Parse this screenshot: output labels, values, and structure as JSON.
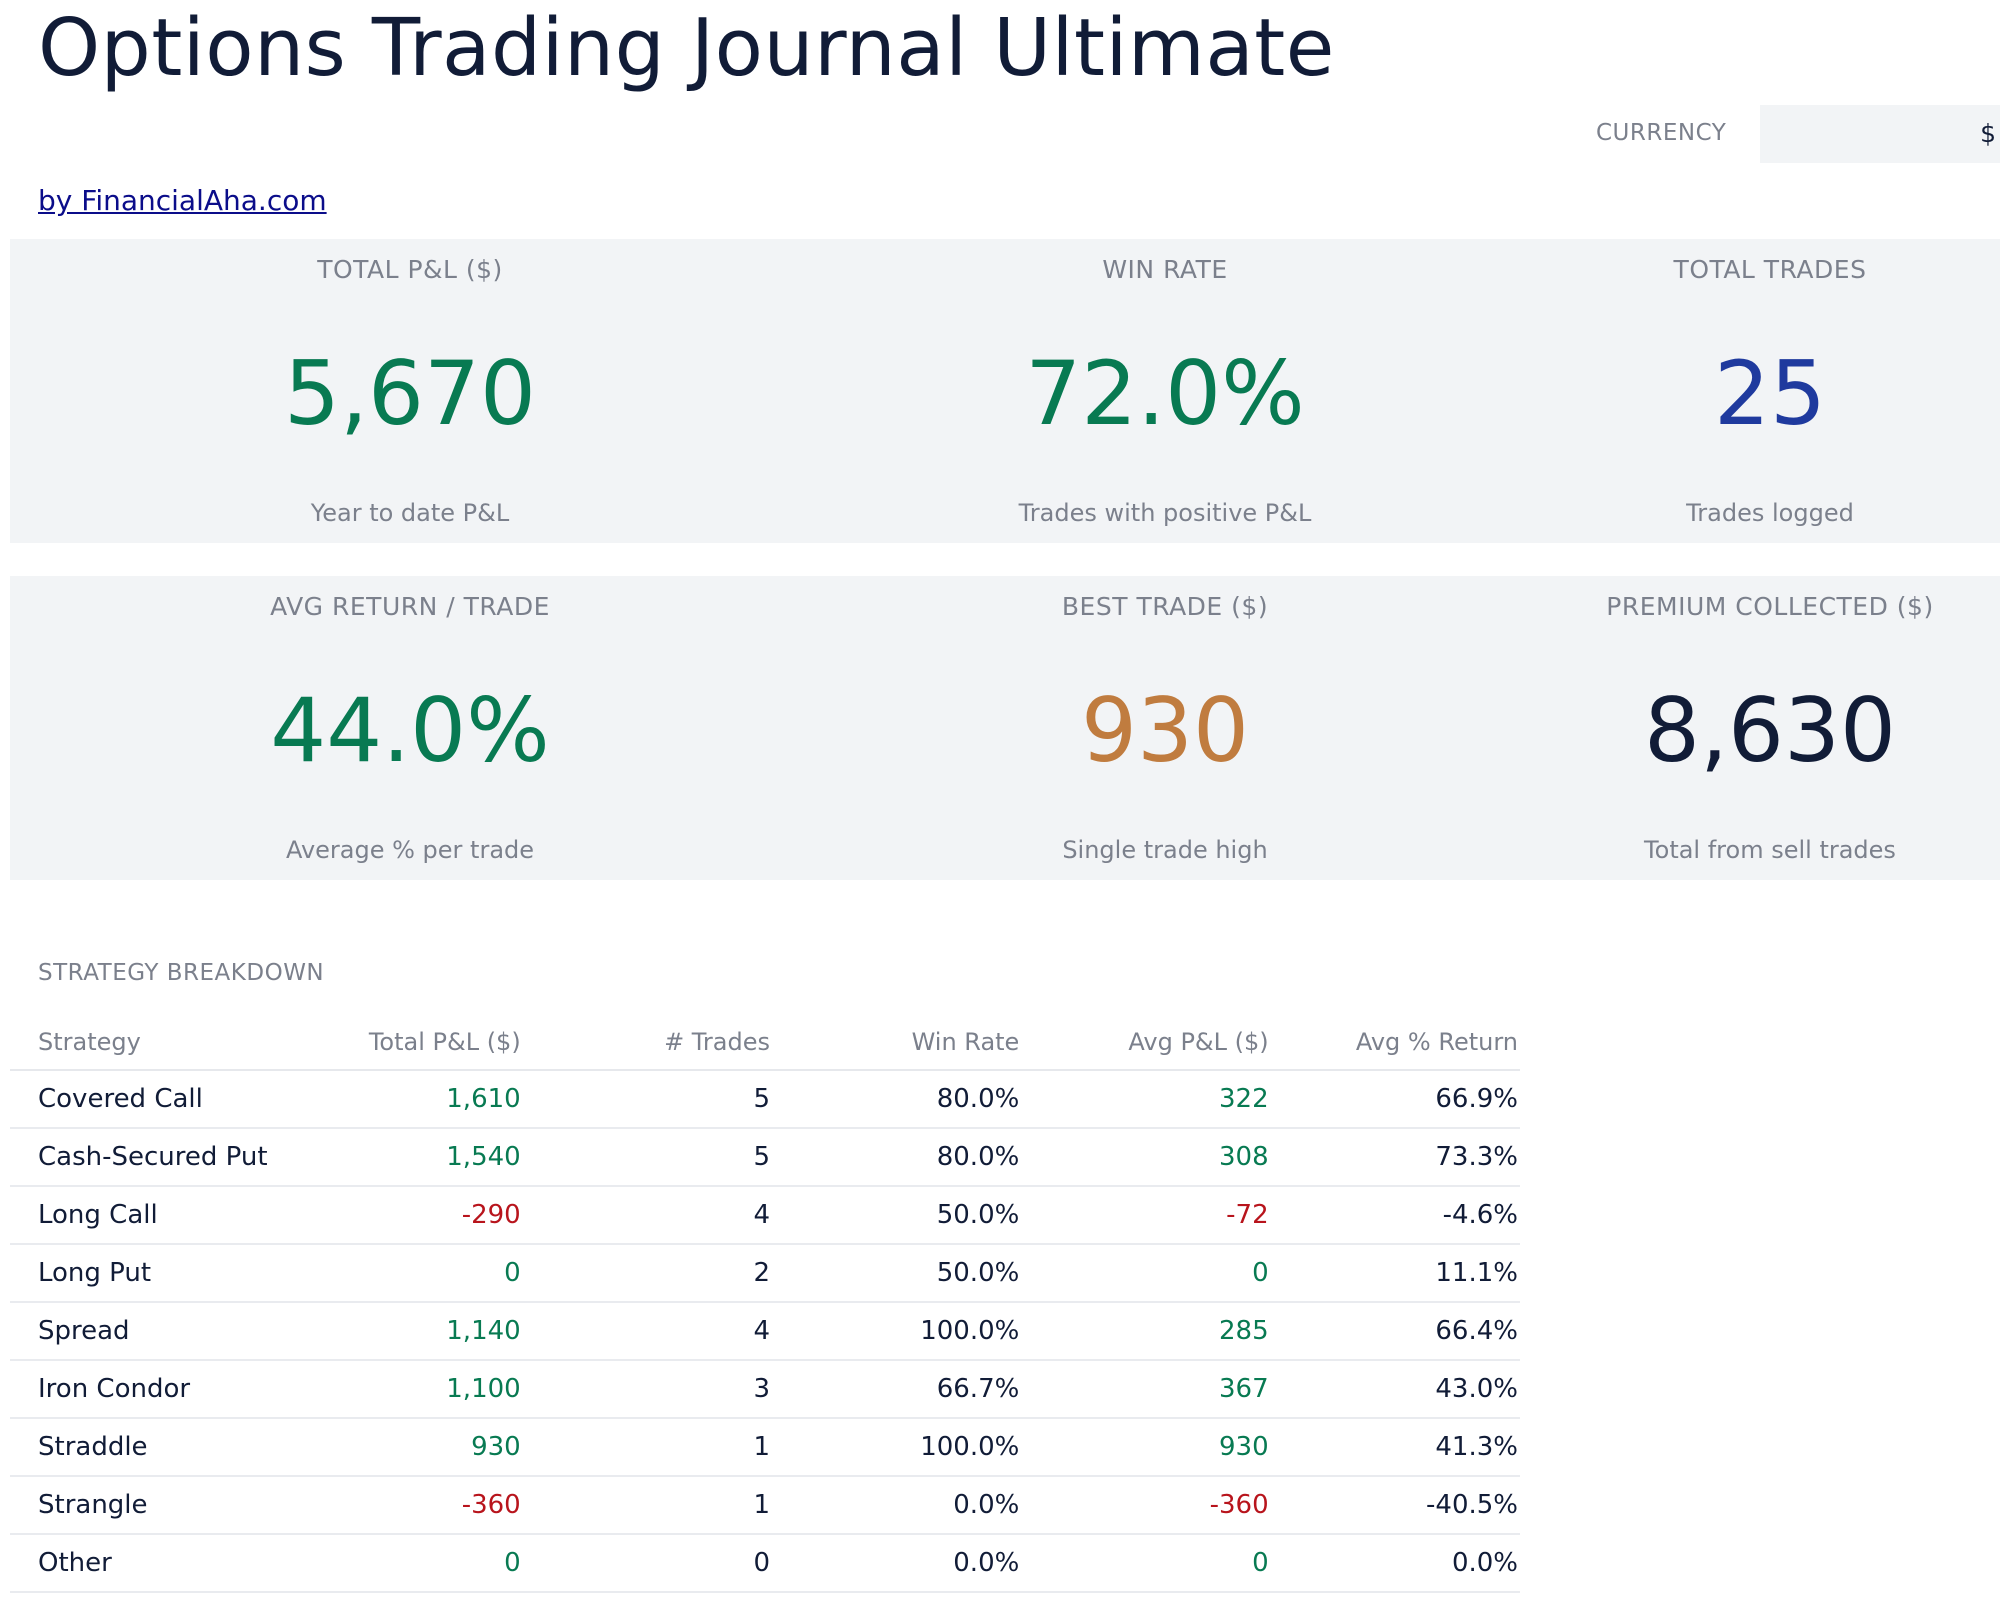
{
  "header": {
    "title": "Options Trading Journal Ultimate",
    "byline": "by FinancialAha.com",
    "currency_label": "CURRENCY",
    "currency_value": "$"
  },
  "kpis": [
    {
      "label": "TOTAL P&L ($)",
      "value": "5,670",
      "sub": "Year to date P&L",
      "color": "#087a52"
    },
    {
      "label": "WIN RATE",
      "value": "72.0%",
      "sub": "Trades with positive P&L",
      "color": "#087a52"
    },
    {
      "label": "TOTAL TRADES",
      "value": "25",
      "sub": "Trades logged",
      "color": "#1f3a9e"
    },
    {
      "label": "AVG RETURN / TRADE",
      "value": "44.0%",
      "sub": "Average % per trade",
      "color": "#087a52"
    },
    {
      "label": "BEST TRADE ($)",
      "value": "930",
      "sub": "Single trade high",
      "color": "#c07c3f"
    },
    {
      "label": "PREMIUM COLLECTED ($)",
      "value": "8,630",
      "sub": "Total from sell trades",
      "color": "#111c37"
    }
  ],
  "strategy": {
    "title": "STRATEGY BREAKDOWN",
    "columns": [
      "Strategy",
      "Total P&L ($)",
      "# Trades",
      "Win Rate",
      "Avg P&L ($)",
      "Avg % Return"
    ],
    "rows": [
      {
        "strategy": "Covered Call",
        "total": "1,610",
        "trades": "5",
        "win": "80.0%",
        "avg": "322",
        "ret": "66.9%",
        "sign": "pos"
      },
      {
        "strategy": "Cash-Secured Put",
        "total": "1,540",
        "trades": "5",
        "win": "80.0%",
        "avg": "308",
        "ret": "73.3%",
        "sign": "pos"
      },
      {
        "strategy": "Long Call",
        "total": "-290",
        "trades": "4",
        "win": "50.0%",
        "avg": "-72",
        "ret": "-4.6%",
        "sign": "neg"
      },
      {
        "strategy": "Long Put",
        "total": "0",
        "trades": "2",
        "win": "50.0%",
        "avg": "0",
        "ret": "11.1%",
        "sign": "pos"
      },
      {
        "strategy": "Spread",
        "total": "1,140",
        "trades": "4",
        "win": "100.0%",
        "avg": "285",
        "ret": "66.4%",
        "sign": "pos"
      },
      {
        "strategy": "Iron Condor",
        "total": "1,100",
        "trades": "3",
        "win": "66.7%",
        "avg": "367",
        "ret": "43.0%",
        "sign": "pos"
      },
      {
        "strategy": "Straddle",
        "total": "930",
        "trades": "1",
        "win": "100.0%",
        "avg": "930",
        "ret": "41.3%",
        "sign": "pos"
      },
      {
        "strategy": "Strangle",
        "total": "-360",
        "trades": "1",
        "win": "0.0%",
        "avg": "-360",
        "ret": "-40.5%",
        "sign": "neg"
      },
      {
        "strategy": "Other",
        "total": "0",
        "trades": "0",
        "win": "0.0%",
        "avg": "0",
        "ret": "0.0%",
        "sign": "pos"
      }
    ]
  },
  "colors": {
    "positive": "#087a52",
    "negative": "#b8141c"
  }
}
